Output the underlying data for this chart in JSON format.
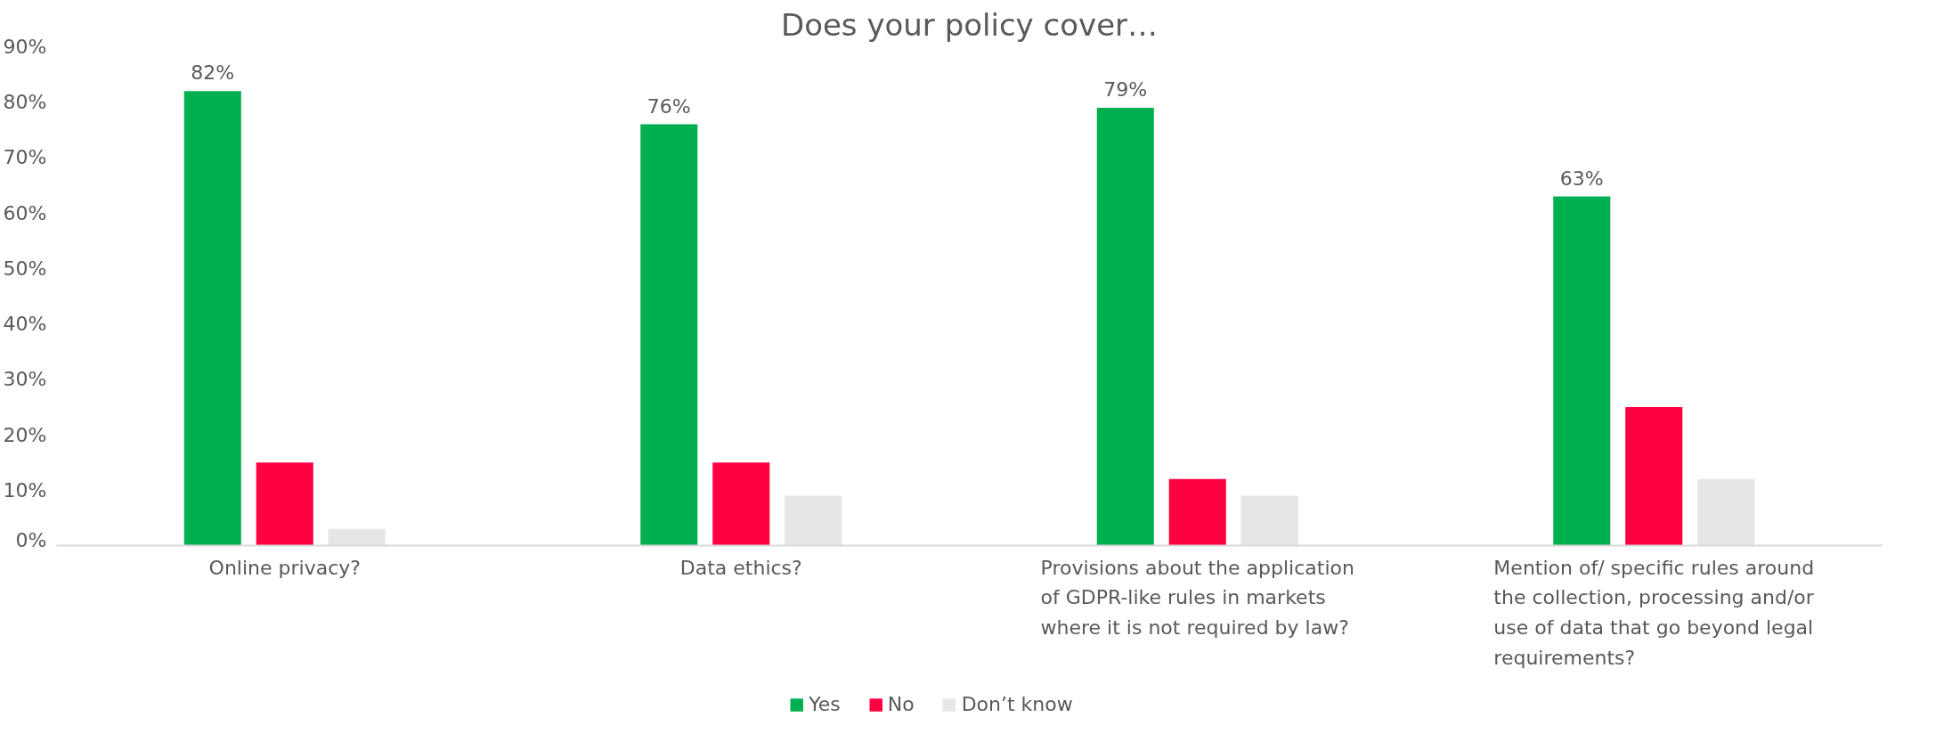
{
  "chart_data": {
    "type": "bar",
    "title": "Does your policy cover…",
    "categories": [
      "Online privacy?",
      "Data ethics?",
      "Provisions about the application of GDPR-like rules in markets where it is not required by law?",
      "Mention of/ specific rules around the collection, processing and/or use of data that go beyond legal requirements?"
    ],
    "series": [
      {
        "name": "Yes",
        "color": "#00b050",
        "values": [
          82,
          76,
          79,
          63
        ],
        "value_labels": [
          "82%",
          "76%",
          "79%",
          "63%"
        ]
      },
      {
        "name": "No",
        "color": "#ff0040",
        "values": [
          15,
          15,
          12,
          25
        ]
      },
      {
        "name": "Don’t know",
        "color": "#e6e6e6",
        "values": [
          3,
          9,
          9,
          12
        ]
      }
    ],
    "ylim": [
      0,
      90
    ],
    "yticks": [
      {
        "value": 0,
        "label": "0%"
      },
      {
        "value": 10,
        "label": "10%"
      },
      {
        "value": 20,
        "label": "20%"
      },
      {
        "value": 30,
        "label": "30%"
      },
      {
        "value": 40,
        "label": "40%"
      },
      {
        "value": 50,
        "label": "50%"
      },
      {
        "value": 60,
        "label": "60%"
      },
      {
        "value": 70,
        "label": "70%"
      },
      {
        "value": 80,
        "label": "80%"
      },
      {
        "value": 90,
        "label": "90%"
      }
    ],
    "grid": false,
    "legend": "bottom"
  }
}
